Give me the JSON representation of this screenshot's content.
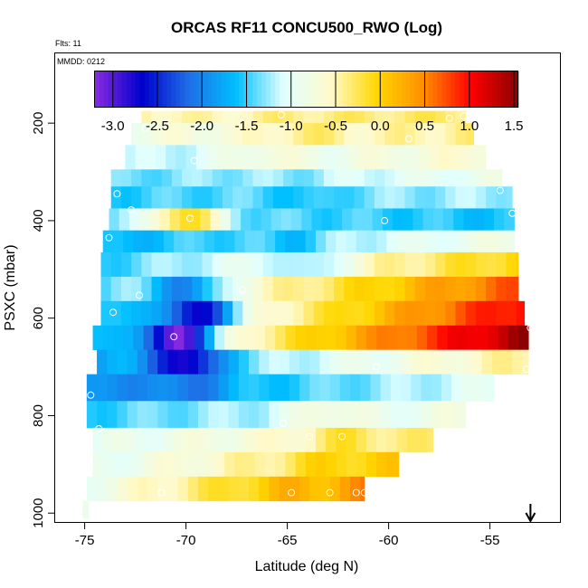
{
  "chart_data": {
    "type": "heatmap",
    "title": "ORCAS RF11 CONCU500_RWO (Log)",
    "flights_label": "Flts: 11",
    "date_label": "MMDD: 0212",
    "xlabel": "Latitude (deg N)",
    "ylabel": "PSXC (mbar)",
    "xlim": [
      -76.5,
      -51.5
    ],
    "ylim": [
      1020,
      55
    ],
    "x_ticks": [
      -75,
      -70,
      -65,
      -60,
      -55
    ],
    "y_ticks": [
      200,
      400,
      600,
      800,
      1000
    ],
    "y_reversed": true,
    "grid": false,
    "colorbar": {
      "ticks": [
        -3.0,
        -2.5,
        -2.0,
        -1.5,
        -1.0,
        -0.5,
        0.0,
        0.5,
        1.0,
        1.5
      ],
      "tick_labels": [
        "-3.0",
        "-2.5",
        "-2.0",
        "-1.5",
        "-1.0",
        "-0.5",
        "0.0",
        "0.5",
        "1.0",
        "1.5"
      ],
      "min": -3.2,
      "max": 1.55,
      "colors": [
        "#8a2be2",
        "#0000cd",
        "#1e6fe6",
        "#00bfff",
        "#e0ffff",
        "#fffacd",
        "#ffd700",
        "#ff8c00",
        "#ff0000",
        "#8b0000"
      ]
    },
    "rows": [
      {
        "p_top": 175,
        "p_bot": 200,
        "lat_start": -72.2,
        "lat_end": -56.2,
        "v_start": -0.45,
        "v_end": -0.3,
        "dip_lat": -68.5,
        "dip_v": -0.55
      },
      {
        "p_top": 200,
        "p_bot": 245,
        "lat_start": -72.7,
        "lat_end": -55.8,
        "v_start": -0.8,
        "v_end": -0.4,
        "dip_lat": -64.0,
        "dip_v": -0.35
      },
      {
        "p_top": 245,
        "p_bot": 295,
        "lat_start": -73.0,
        "lat_end": -55.2,
        "v_start": -1.2,
        "v_end": -0.6,
        "dip_lat": -66.0,
        "dip_v": -0.7
      },
      {
        "p_top": 295,
        "p_bot": 330,
        "lat_start": -73.7,
        "lat_end": -54.4,
        "v_start": -1.4,
        "v_end": -0.9,
        "dip_lat": -65.0,
        "dip_v": -1.3
      },
      {
        "p_top": 330,
        "p_bot": 375,
        "lat_start": -73.7,
        "lat_end": -53.9,
        "v_start": -1.5,
        "v_end": -1.2,
        "dip_lat": -64.0,
        "dip_v": -1.6
      },
      {
        "p_top": 375,
        "p_bot": 420,
        "lat_start": -73.8,
        "lat_end": -53.8,
        "v_start": -1.3,
        "v_end": -1.6,
        "dip_lat": -70.0,
        "dip_v": -0.05
      },
      {
        "p_top": 420,
        "p_bot": 465,
        "lat_start": -74.1,
        "lat_end": -53.8,
        "v_start": -1.7,
        "v_end": -0.8,
        "dip_lat": -65.0,
        "dip_v": -1.6
      },
      {
        "p_top": 465,
        "p_bot": 515,
        "lat_start": -74.2,
        "lat_end": -53.6,
        "v_start": -1.5,
        "v_end": 0.0,
        "dip_lat": -64.0,
        "dip_v": -1.3
      },
      {
        "p_top": 515,
        "p_bot": 565,
        "lat_start": -74.2,
        "lat_end": -53.6,
        "v_start": -1.4,
        "v_end": 0.7,
        "dip_lat": -70.0,
        "dip_v": -2.0
      },
      {
        "p_top": 565,
        "p_bot": 615,
        "lat_start": -74.2,
        "lat_end": -53.3,
        "v_start": -1.7,
        "v_end": 1.1,
        "dip_lat": -69.5,
        "dip_v": -2.7
      },
      {
        "p_top": 615,
        "p_bot": 665,
        "lat_start": -74.6,
        "lat_end": -53.1,
        "v_start": -1.6,
        "v_end": 1.5,
        "dip_lat": -70.5,
        "dip_v": -3.1
      },
      {
        "p_top": 665,
        "p_bot": 715,
        "lat_start": -74.4,
        "lat_end": -53.1,
        "v_start": -1.8,
        "v_end": -0.4,
        "dip_lat": -70.0,
        "dip_v": -2.8
      },
      {
        "p_top": 715,
        "p_bot": 770,
        "lat_start": -74.9,
        "lat_end": -54.8,
        "v_start": -2.0,
        "v_end": -1.0,
        "dip_lat": -70.0,
        "dip_v": -2.1
      },
      {
        "p_top": 770,
        "p_bot": 825,
        "lat_start": -74.9,
        "lat_end": -56.2,
        "v_start": -1.5,
        "v_end": -0.8,
        "dip_lat": -63.0,
        "dip_v": -0.7
      },
      {
        "p_top": 825,
        "p_bot": 875,
        "lat_start": -74.6,
        "lat_end": -57.8,
        "v_start": -1.0,
        "v_end": -0.35,
        "dip_lat": -62.0,
        "dip_v": -0.2
      },
      {
        "p_top": 875,
        "p_bot": 925,
        "lat_start": -74.6,
        "lat_end": -59.5,
        "v_start": -1.0,
        "v_end": 0.05,
        "dip_lat": -62.5,
        "dip_v": 0.0
      },
      {
        "p_top": 925,
        "p_bot": 975,
        "lat_start": -74.9,
        "lat_end": -61.2,
        "v_start": -0.9,
        "v_end": 0.55,
        "dip_lat": -63.5,
        "dip_v": 0.2
      },
      {
        "p_top": 975,
        "p_bot": 1010,
        "lat_start": -75.1,
        "lat_end": -74.8,
        "v_start": -0.9,
        "v_end": -0.8,
        "dip_lat": -75.0,
        "dip_v": -0.85
      }
    ],
    "markers": [
      {
        "lat": -72.0,
        "p": 210
      },
      {
        "lat": -65.3,
        "p": 183
      },
      {
        "lat": -57.0,
        "p": 190
      },
      {
        "lat": -56.3,
        "p": 185
      },
      {
        "lat": -59.0,
        "p": 232
      },
      {
        "lat": -69.6,
        "p": 277
      },
      {
        "lat": -73.4,
        "p": 345
      },
      {
        "lat": -72.7,
        "p": 378
      },
      {
        "lat": -69.8,
        "p": 395
      },
      {
        "lat": -60.2,
        "p": 400
      },
      {
        "lat": -54.5,
        "p": 338
      },
      {
        "lat": -53.9,
        "p": 385
      },
      {
        "lat": -73.8,
        "p": 435
      },
      {
        "lat": -72.3,
        "p": 553
      },
      {
        "lat": -67.2,
        "p": 542
      },
      {
        "lat": -73.6,
        "p": 588
      },
      {
        "lat": -70.6,
        "p": 638
      },
      {
        "lat": -53.0,
        "p": 620
      },
      {
        "lat": -60.6,
        "p": 700
      },
      {
        "lat": -53.2,
        "p": 705
      },
      {
        "lat": -74.7,
        "p": 758
      },
      {
        "lat": -74.3,
        "p": 827
      },
      {
        "lat": -65.2,
        "p": 815
      },
      {
        "lat": -63.9,
        "p": 843
      },
      {
        "lat": -62.3,
        "p": 843
      },
      {
        "lat": -64.8,
        "p": 958
      },
      {
        "lat": -62.9,
        "p": 958
      },
      {
        "lat": -61.6,
        "p": 958
      },
      {
        "lat": -61.2,
        "p": 958
      },
      {
        "lat": -71.2,
        "p": 958
      }
    ],
    "arrow_lat": -53.0
  }
}
